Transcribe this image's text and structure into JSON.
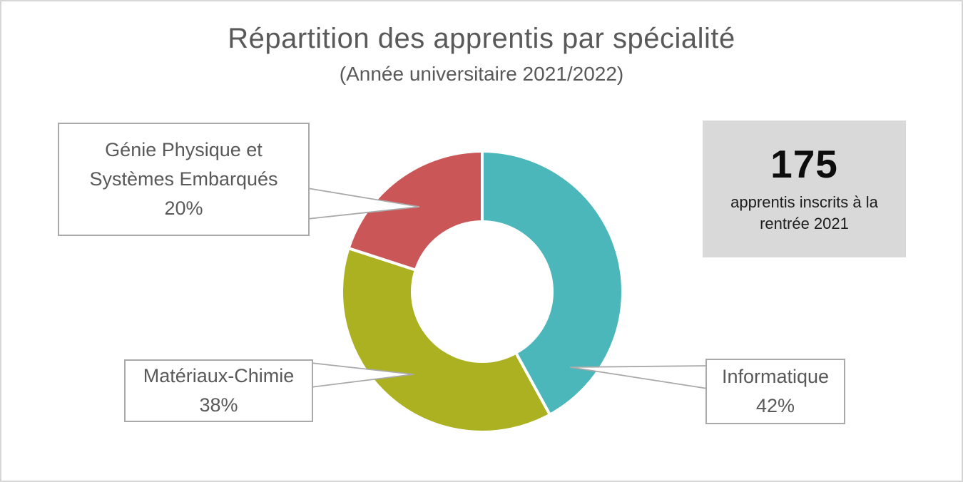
{
  "header": {
    "title": "Répartition des apprentis par spécialité",
    "subtitle": "(Année universitaire 2021/2022)"
  },
  "chart_data": {
    "type": "pie",
    "subtype": "donut",
    "title": "Répartition des apprentis par spécialité",
    "subtitle": "(Année universitaire 2021/2022)",
    "unit": "%",
    "start_angle_deg": 0,
    "direction": "clockwise",
    "inner_radius_ratio": 0.51,
    "total_label": "175 apprentis inscrits à la rentrée 2021",
    "segments": [
      {
        "key": "informatique",
        "label": "Informatique",
        "value": 42,
        "color": "#4bb7bb"
      },
      {
        "key": "materiaux-chimie",
        "label": "Matériaux-Chimie",
        "value": 38,
        "color": "#abb121"
      },
      {
        "key": "genie-physique",
        "label": "Génie Physique et Systèmes Embarqués",
        "value": 20,
        "color": "#cb5657"
      }
    ]
  },
  "callouts": {
    "genie": {
      "line1": "Génie Physique et",
      "line2": "Systèmes Embarqués",
      "value": "20%"
    },
    "materiaux": {
      "line1": "Matériaux-Chimie",
      "value": "38%"
    },
    "informatique": {
      "line1": "Informatique",
      "value": "42%"
    }
  },
  "stat_box": {
    "value": "175",
    "caption_line1": "apprentis inscrits à la",
    "caption_line2": "rentrée 2021",
    "background": "#d9d9d9"
  },
  "colors": {
    "teal": "#4bb7bb",
    "olive": "#abb121",
    "red": "#cb5657",
    "text_gray": "#595959",
    "border_gray": "#a9a9a9",
    "stat_bg": "#d9d9d9"
  }
}
